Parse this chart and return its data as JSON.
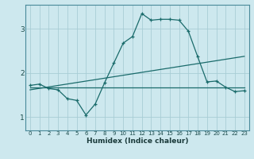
{
  "xlabel": "Humidex (Indice chaleur)",
  "x_ticks": [
    0,
    1,
    2,
    3,
    4,
    5,
    6,
    7,
    8,
    9,
    10,
    11,
    12,
    13,
    14,
    15,
    16,
    17,
    18,
    19,
    20,
    21,
    22,
    23
  ],
  "y_ticks": [
    1,
    2,
    3
  ],
  "ylim": [
    0.7,
    3.55
  ],
  "xlim": [
    -0.5,
    23.5
  ],
  "bg_color": "#cde8ee",
  "grid_color": "#a8cdd5",
  "line_color": "#1a6b6b",
  "line1_x": [
    0,
    1,
    2,
    3,
    4,
    5,
    6,
    7,
    8,
    9,
    10,
    11,
    12,
    13,
    14,
    15,
    16,
    17,
    18,
    19,
    20,
    21,
    22,
    23
  ],
  "line1_y": [
    1.72,
    1.75,
    1.65,
    1.62,
    1.42,
    1.38,
    1.05,
    1.3,
    1.78,
    2.23,
    2.68,
    2.83,
    3.35,
    3.2,
    3.22,
    3.22,
    3.2,
    2.95,
    2.37,
    1.8,
    1.82,
    1.68,
    1.58,
    1.6
  ],
  "line2_x": [
    0,
    23
  ],
  "line2_y": [
    1.62,
    2.38
  ],
  "line3_x": [
    0,
    23
  ],
  "line3_y": [
    1.68,
    1.68
  ],
  "xtick_fontsize": 5.0,
  "ytick_fontsize": 6.5,
  "xlabel_fontsize": 6.5
}
